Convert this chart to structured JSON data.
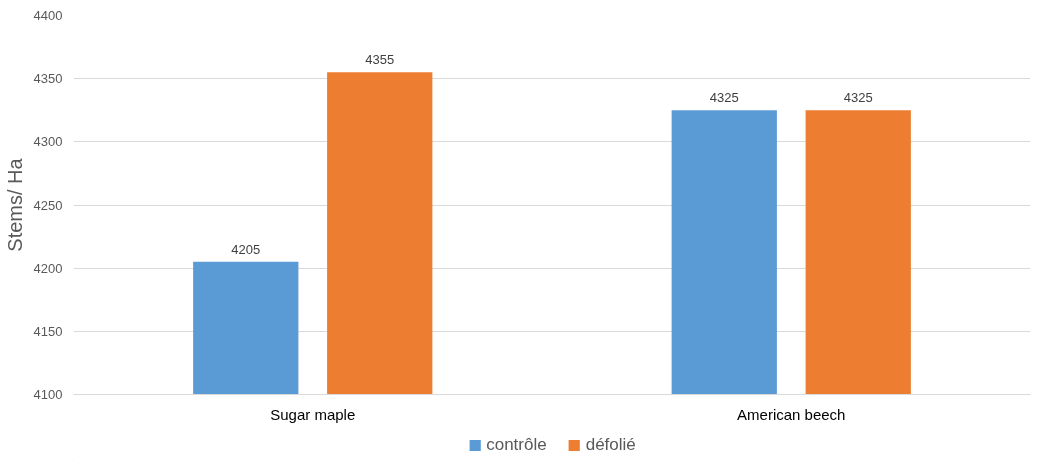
{
  "chart_data": {
    "type": "bar",
    "ylabel": "Stems/ Ha",
    "categories": [
      "Sugar maple",
      "American beech"
    ],
    "series": [
      {
        "name": "contrôle",
        "color": "#5b9bd5",
        "values": [
          4205,
          4325
        ]
      },
      {
        "name": "défolié",
        "color": "#ed7d31",
        "values": [
          4355,
          4325
        ]
      }
    ],
    "ylim": [
      4100,
      4400
    ],
    "yticks": [
      4100,
      4150,
      4200,
      4250,
      4300,
      4350,
      4400
    ],
    "grid": "y",
    "legend": "bottom",
    "data_labels": true
  }
}
